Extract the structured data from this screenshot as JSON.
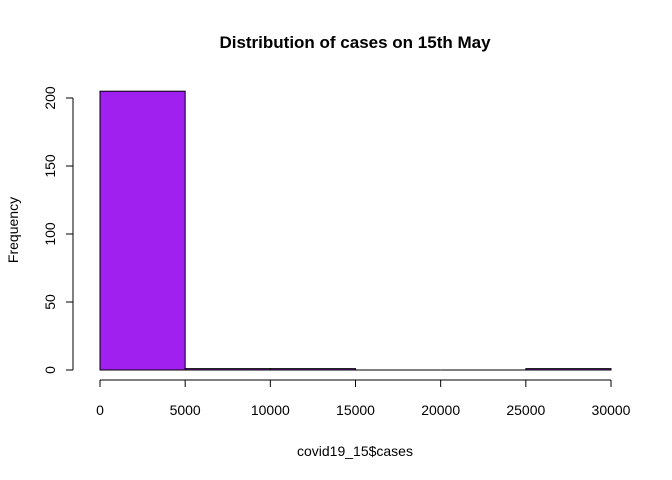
{
  "chart_data": {
    "type": "bar",
    "title": "Distribution of cases on 15th May",
    "xlabel": "covid19_15$cases",
    "ylabel": "Frequency",
    "bins": [
      {
        "x0": 0,
        "x1": 5000,
        "count": 205
      },
      {
        "x0": 5000,
        "x1": 10000,
        "count": 1
      },
      {
        "x0": 10000,
        "x1": 15000,
        "count": 1
      },
      {
        "x0": 15000,
        "x1": 20000,
        "count": 0
      },
      {
        "x0": 20000,
        "x1": 25000,
        "count": 0
      },
      {
        "x0": 25000,
        "x1": 30000,
        "count": 1
      }
    ],
    "xlim": [
      0,
      30000
    ],
    "ylim": [
      0,
      200
    ],
    "x_ticks": [
      0,
      5000,
      10000,
      15000,
      20000,
      25000,
      30000
    ],
    "x_tick_labels": [
      "0",
      "5000",
      "10000",
      "15000",
      "20000",
      "25000",
      "30000"
    ],
    "y_ticks": [
      0,
      50,
      100,
      150,
      200
    ],
    "y_tick_labels": [
      "0",
      "50",
      "100",
      "150",
      "200"
    ],
    "bar_color": "#A020F0",
    "grid": false
  }
}
